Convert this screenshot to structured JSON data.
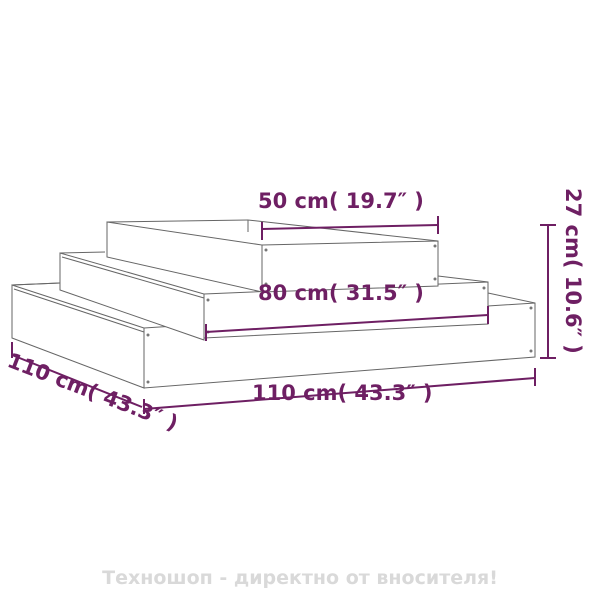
{
  "dimensions": {
    "top_width": "50 cm( 19.7″ )",
    "middle_width": "80 cm( 31.5″ )",
    "bottom_width": "110 cm( 43.3″ )",
    "depth": "110 cm( 43.3″ )",
    "height": "27 cm( 10.6″ )"
  },
  "footer": "Техношоп - директно от вносителя!",
  "colors": {
    "dimension": "#6e1f63",
    "outline": "#555555",
    "watermark": "#d9d9d9"
  }
}
